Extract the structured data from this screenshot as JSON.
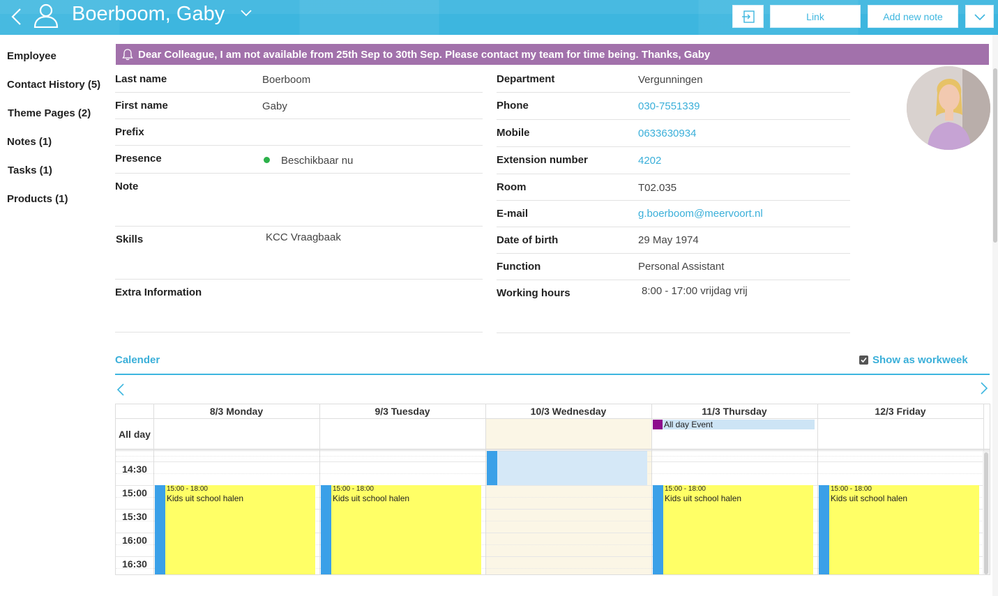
{
  "header": {
    "title": "Boerboom, Gaby",
    "link_label": "Link",
    "add_note_label": "Add new note"
  },
  "sidebar": {
    "items": [
      {
        "label": "Employee"
      },
      {
        "label": "Contact History (5)"
      },
      {
        "label": "Theme Pages (2)"
      },
      {
        "label": "Notes (1)"
      },
      {
        "label": "Tasks (1)"
      },
      {
        "label": "Products (1)"
      }
    ]
  },
  "banner": {
    "text": "Dear Colleague, I am not available from 25th Sep to 30th Sep. Please contact my team for time being. Thanks, Gaby",
    "color": "#a271ab"
  },
  "left_fields": {
    "last_name": {
      "label": "Last name",
      "value": "Boerboom"
    },
    "first_name": {
      "label": "First name",
      "value": "Gaby"
    },
    "prefix": {
      "label": "Prefix",
      "value": ""
    },
    "presence": {
      "label": "Presence",
      "value": "Beschikbaar nu"
    },
    "note": {
      "label": "Note",
      "value": ""
    },
    "skills": {
      "label": "Skills",
      "value": "KCC Vraagbaak"
    },
    "extra": {
      "label": "Extra Information",
      "value": ""
    }
  },
  "right_fields": {
    "department": {
      "label": "Department",
      "value": "Vergunningen"
    },
    "phone": {
      "label": "Phone",
      "value": "030-7551339"
    },
    "mobile": {
      "label": "Mobile",
      "value": "0633630934"
    },
    "extension": {
      "label": "Extension number",
      "value": "4202"
    },
    "room": {
      "label": "Room",
      "value": "T02.035"
    },
    "email": {
      "label": "E-mail",
      "value": "g.boerboom@meervoort.nl"
    },
    "dob": {
      "label": "Date of birth",
      "value": "29 May 1974"
    },
    "function": {
      "label": "Function",
      "value": "Personal Assistant"
    },
    "hours": {
      "label": "Working hours",
      "value": "8:00 - 17:00 vrijdag vrij"
    }
  },
  "calendar": {
    "title": "Calender",
    "show_workweek_label": "Show as workweek",
    "show_workweek_checked": true,
    "days": [
      "8/3 Monday",
      "9/3 Tuesday",
      "10/3 Wednesday",
      "11/3 Thursday",
      "12/3 Friday"
    ],
    "all_day_label": "All day",
    "times": [
      "14:30",
      "15:00",
      "15:30",
      "16:00",
      "16:30"
    ],
    "all_day_event": {
      "day": "11/3 Thursday",
      "title": "All day Event"
    },
    "events": [
      {
        "day": "8/3 Monday",
        "time": "15:00 - 18:00",
        "title": "Kids uit school halen"
      },
      {
        "day": "9/3 Tuesday",
        "time": "15:00 - 18:00",
        "title": "Kids uit school halen"
      },
      {
        "day": "11/3 Thursday",
        "time": "15:00 - 18:00",
        "title": "Kids uit school halen"
      },
      {
        "day": "12/3 Friday",
        "time": "15:00 - 18:00",
        "title": "Kids uit school halen"
      }
    ],
    "colors": {
      "accent": "#3db6df",
      "event": "#ffff66",
      "event_bar": "#3aa0e8",
      "today": "#fbf6e6"
    }
  }
}
